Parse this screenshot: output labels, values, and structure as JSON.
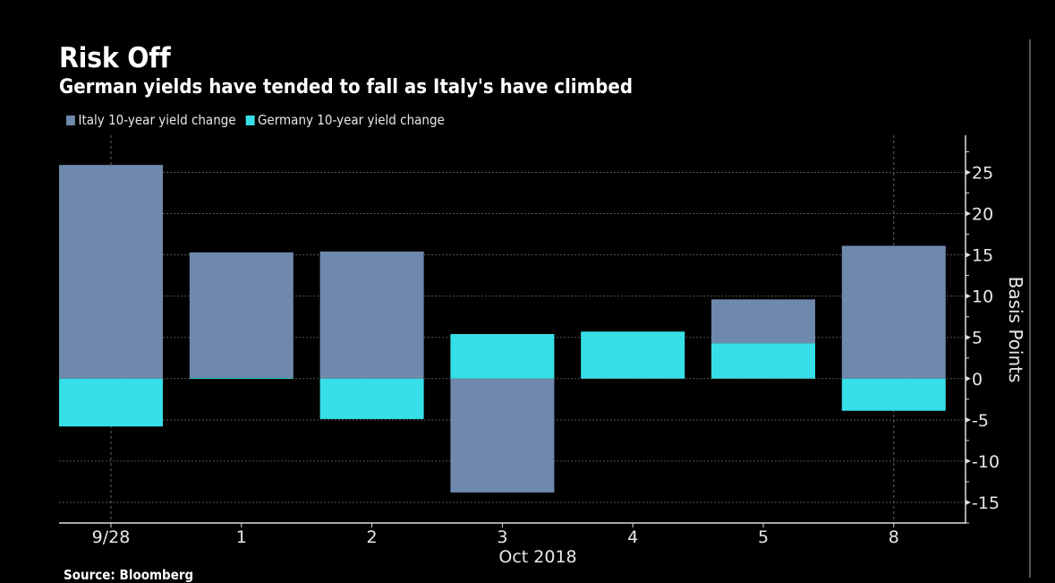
{
  "header": {
    "title": "Risk Off",
    "subtitle": "German yields have tended to fall as Italy's have climbed"
  },
  "legend": [
    {
      "label": "Italy 10-year yield change",
      "color": "#6f89ad"
    },
    {
      "label": "Germany 10-year yield change",
      "color": "#36dfe8"
    }
  ],
  "footer": {
    "source": "Source: Bloomberg"
  },
  "chart_data": {
    "type": "bar",
    "stacked": true,
    "title": "Risk Off",
    "subtitle": "German yields have tended to fall as Italy's have climbed",
    "categories": [
      "9/28",
      "1",
      "2",
      "3",
      "4",
      "5",
      "8"
    ],
    "xlabel": "Oct 2018",
    "ylabel": "Basis Points",
    "ylim": [
      -17.5,
      29.5
    ],
    "yticks": [
      -15,
      -10,
      -5,
      0,
      5,
      10,
      15,
      20,
      25
    ],
    "yaxis_side": "right",
    "grid": true,
    "legend_position": "top-left",
    "series": [
      {
        "name": "Italy 10-year yield change",
        "color": "#6f89ad",
        "values": [
          25.9,
          15.2,
          15.4,
          -13.8,
          0.0,
          5.3,
          16.1
        ]
      },
      {
        "name": "Germany 10-year yield change",
        "color": "#36dfe8",
        "values": [
          -5.8,
          0.1,
          -4.9,
          5.4,
          5.7,
          4.3,
          -3.9
        ]
      }
    ]
  }
}
